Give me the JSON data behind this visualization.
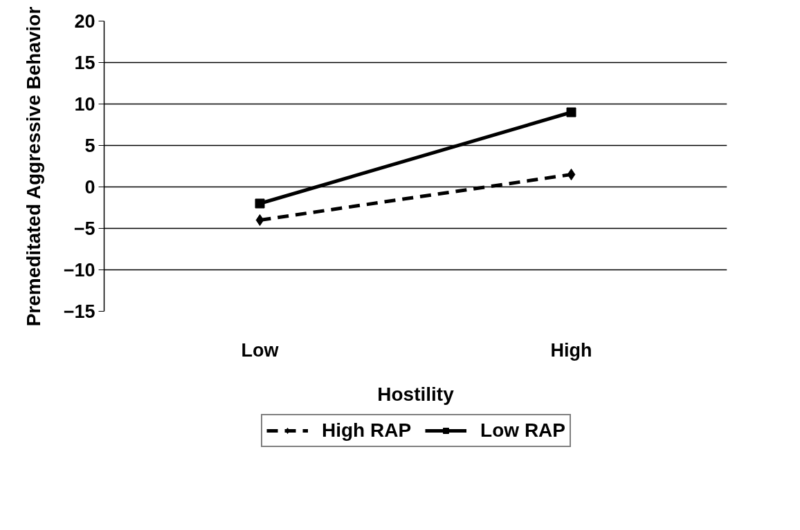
{
  "chart_data": {
    "type": "line",
    "xlabel": "Hostility",
    "ylabel": "Premeditated Aggressive Behavior",
    "categories": [
      "Low",
      "High"
    ],
    "series": [
      {
        "name": "High RAP",
        "color": "#000000",
        "values": [
          -4,
          1.5
        ],
        "line_style": "dashed",
        "marker": "diamond"
      },
      {
        "name": "Low RAP",
        "color": "#000000",
        "values": [
          -2,
          9
        ],
        "line_style": "solid",
        "marker": "square"
      }
    ],
    "ylim": [
      -15,
      20
    ],
    "yticks": [
      -15,
      -10,
      -5,
      0,
      5,
      10,
      15,
      20
    ],
    "grid": "y",
    "legend": "bottom"
  }
}
